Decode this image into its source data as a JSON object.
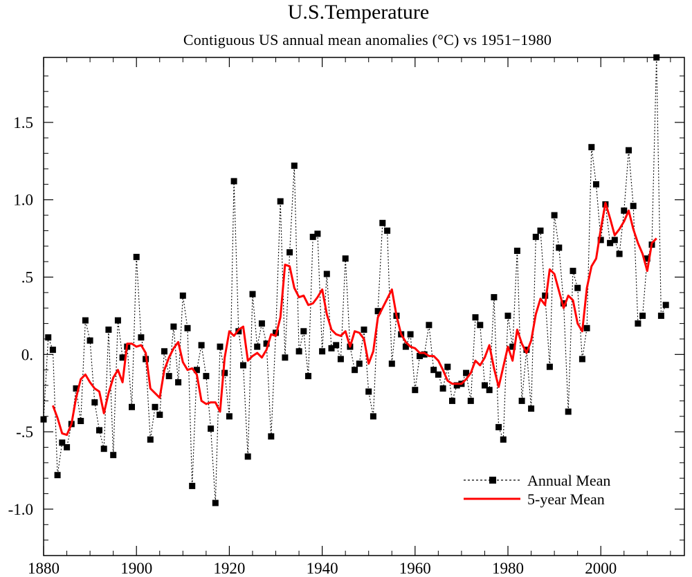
{
  "chart_data": {
    "type": "line",
    "title": "U.S.Temperature",
    "subtitle": "Contiguous US annual mean anomalies (°C) vs 1951−1980",
    "xlabel": "",
    "ylabel": "",
    "xlim": [
      1880,
      2018
    ],
    "ylim": [
      -1.3,
      1.92
    ],
    "grid": false,
    "legend_position": "bottom-right",
    "x_ticks": [
      1880,
      1900,
      1920,
      1940,
      1960,
      1980,
      2000
    ],
    "x_tick_labels": [
      "1880",
      "1900",
      "1920",
      "1940",
      "1960",
      "1980",
      "2000"
    ],
    "y_ticks": [
      1.5,
      1.0,
      0.5,
      0.0,
      -0.5,
      -1.0
    ],
    "y_tick_labels": [
      "1.5",
      "1.0",
      ".5",
      "0.",
      "-.5",
      "-1.0"
    ],
    "series": [
      {
        "name": "Annual Mean",
        "color": "#000000",
        "style": "dotted-with-square-markers",
        "x": [
          1880,
          1881,
          1882,
          1883,
          1884,
          1885,
          1886,
          1887,
          1888,
          1889,
          1890,
          1891,
          1892,
          1893,
          1894,
          1895,
          1896,
          1897,
          1898,
          1899,
          1900,
          1901,
          1902,
          1903,
          1904,
          1905,
          1906,
          1907,
          1908,
          1909,
          1910,
          1911,
          1912,
          1913,
          1914,
          1915,
          1916,
          1917,
          1918,
          1919,
          1920,
          1921,
          1922,
          1923,
          1924,
          1925,
          1926,
          1927,
          1928,
          1929,
          1930,
          1931,
          1932,
          1933,
          1934,
          1935,
          1936,
          1937,
          1938,
          1939,
          1940,
          1941,
          1942,
          1943,
          1944,
          1945,
          1946,
          1947,
          1948,
          1949,
          1950,
          1951,
          1952,
          1953,
          1954,
          1955,
          1956,
          1957,
          1958,
          1959,
          1960,
          1961,
          1962,
          1963,
          1964,
          1965,
          1966,
          1967,
          1968,
          1969,
          1970,
          1971,
          1972,
          1973,
          1974,
          1975,
          1976,
          1977,
          1978,
          1979,
          1980,
          1981,
          1982,
          1983,
          1984,
          1985,
          1986,
          1987,
          1988,
          1989,
          1990,
          1991,
          1992,
          1993,
          1994,
          1995,
          1996,
          1997,
          1998,
          1999,
          2000,
          2001,
          2002,
          2003,
          2004,
          2005,
          2006,
          2007,
          2008,
          2009,
          2010,
          2011,
          2012,
          2013,
          2014
        ],
        "values": [
          -0.42,
          0.11,
          0.03,
          -0.78,
          -0.57,
          -0.6,
          -0.45,
          -0.22,
          -0.43,
          0.22,
          0.09,
          -0.31,
          -0.49,
          -0.61,
          0.16,
          -0.65,
          0.22,
          -0.02,
          0.05,
          -0.34,
          0.63,
          0.11,
          -0.03,
          -0.55,
          -0.34,
          -0.39,
          0.02,
          -0.14,
          0.18,
          -0.18,
          0.38,
          0.17,
          -0.85,
          -0.1,
          0.06,
          -0.14,
          -0.48,
          -0.96,
          0.05,
          -0.12,
          -0.4,
          1.12,
          0.15,
          -0.07,
          -0.66,
          0.39,
          0.05,
          0.2,
          0.07,
          -0.53,
          0.14,
          0.99,
          -0.02,
          0.66,
          1.22,
          0.02,
          0.15,
          -0.14,
          0.76,
          0.78,
          0.02,
          0.52,
          0.04,
          0.06,
          -0.03,
          0.62,
          0.05,
          -0.1,
          -0.06,
          0.16,
          -0.24,
          -0.4,
          0.28,
          0.85,
          0.8,
          -0.06,
          0.25,
          0.13,
          0.05,
          0.13,
          -0.23,
          -0.01,
          0.0,
          0.19,
          -0.1,
          -0.13,
          -0.22,
          -0.08,
          -0.3,
          -0.2,
          -0.19,
          -0.12,
          -0.3,
          0.24,
          0.19,
          -0.2,
          -0.23,
          0.37,
          -0.47,
          -0.55,
          0.25,
          0.05,
          0.67,
          -0.3,
          0.03,
          -0.35,
          0.76,
          0.8,
          0.38,
          -0.08,
          0.9,
          0.69,
          0.33,
          -0.37,
          0.54,
          0.43,
          -0.03,
          0.17,
          1.34,
          1.1,
          0.74,
          0.97,
          0.72,
          0.74,
          0.65,
          0.93,
          1.32,
          0.96,
          0.2,
          0.25,
          0.62,
          0.71,
          1.92,
          0.25,
          0.32
        ]
      },
      {
        "name": "5-year Mean",
        "color": "#ff0000",
        "style": "solid",
        "x": [
          1882,
          1883,
          1884,
          1885,
          1886,
          1887,
          1888,
          1889,
          1890,
          1891,
          1892,
          1893,
          1894,
          1895,
          1896,
          1897,
          1898,
          1899,
          1900,
          1901,
          1902,
          1903,
          1904,
          1905,
          1906,
          1907,
          1908,
          1909,
          1910,
          1911,
          1912,
          1913,
          1914,
          1915,
          1916,
          1917,
          1918,
          1919,
          1920,
          1921,
          1922,
          1923,
          1924,
          1925,
          1926,
          1927,
          1928,
          1929,
          1930,
          1931,
          1932,
          1933,
          1934,
          1935,
          1936,
          1937,
          1938,
          1939,
          1940,
          1941,
          1942,
          1943,
          1944,
          1945,
          1946,
          1947,
          1948,
          1949,
          1950,
          1951,
          1952,
          1953,
          1954,
          1955,
          1956,
          1957,
          1958,
          1959,
          1960,
          1961,
          1962,
          1963,
          1964,
          1965,
          1966,
          1967,
          1968,
          1969,
          1970,
          1971,
          1972,
          1973,
          1974,
          1975,
          1976,
          1977,
          1978,
          1979,
          1980,
          1981,
          1982,
          1983,
          1984,
          1985,
          1986,
          1987,
          1988,
          1989,
          1990,
          1991,
          1992,
          1993,
          1994,
          1995,
          1996,
          1997,
          1998,
          1999,
          2000,
          2001,
          2002,
          2003,
          2004,
          2005,
          2006,
          2007,
          2008,
          2009,
          2010,
          2011,
          2012
        ],
        "values": [
          -0.33,
          -0.41,
          -0.51,
          -0.52,
          -0.45,
          -0.28,
          -0.16,
          -0.13,
          -0.18,
          -0.22,
          -0.24,
          -0.38,
          -0.25,
          -0.15,
          -0.1,
          -0.18,
          0.07,
          0.07,
          0.05,
          0.06,
          0.01,
          -0.22,
          -0.25,
          -0.28,
          -0.1,
          -0.02,
          0.04,
          0.08,
          -0.05,
          -0.1,
          -0.09,
          -0.13,
          -0.3,
          -0.32,
          -0.31,
          -0.31,
          -0.37,
          -0.02,
          0.15,
          0.12,
          0.16,
          0.18,
          -0.04,
          -0.01,
          0.01,
          -0.02,
          0.03,
          0.13,
          0.12,
          0.24,
          0.58,
          0.57,
          0.43,
          0.37,
          0.38,
          0.32,
          0.33,
          0.37,
          0.42,
          0.26,
          0.16,
          0.13,
          0.12,
          0.15,
          0.05,
          0.15,
          0.14,
          0.1,
          -0.06,
          0.02,
          0.24,
          0.3,
          0.36,
          0.42,
          0.25,
          0.13,
          0.08,
          0.05,
          0.04,
          0.01,
          0.01,
          -0.01,
          -0.01,
          -0.04,
          -0.1,
          -0.17,
          -0.19,
          -0.19,
          -0.19,
          -0.16,
          -0.12,
          -0.04,
          -0.07,
          -0.02,
          0.06,
          -0.09,
          -0.21,
          -0.08,
          0.05,
          -0.04,
          0.16,
          0.07,
          0.01,
          0.09,
          0.26,
          0.36,
          0.32,
          0.55,
          0.52,
          0.41,
          0.3,
          0.38,
          0.35,
          0.2,
          0.15,
          0.43,
          0.57,
          0.62,
          0.81,
          0.98,
          0.88,
          0.77,
          0.81,
          0.86,
          0.93,
          0.81,
          0.72,
          0.65,
          0.54,
          0.72,
          0.75
        ]
      }
    ]
  }
}
